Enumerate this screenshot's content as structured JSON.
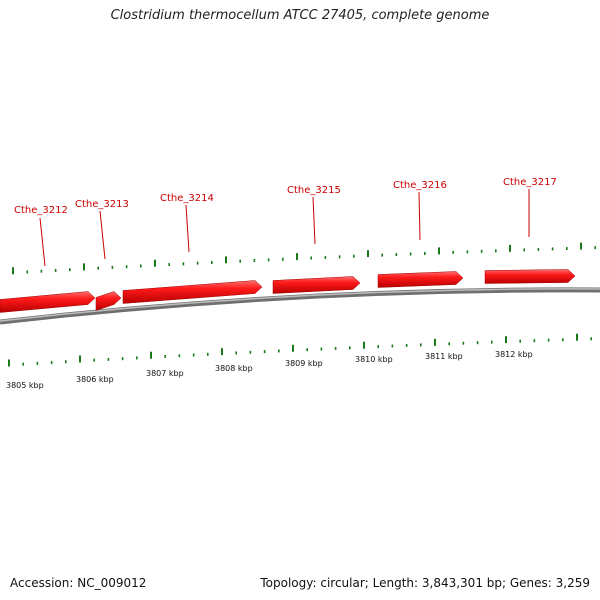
{
  "title": "Clostridium thermocellum ATCC 27405, complete genome",
  "footer": {
    "accession": "Accession: NC_009012",
    "summary": "Topology: circular; Length: 3,843,301 bp; Genes: 3,259"
  },
  "colors": {
    "gene_fill": "#ff1010",
    "gene_label": "#cc0000",
    "tick": "#1a7a1a",
    "backbone": "#7a7a7a"
  },
  "genes": [
    {
      "label": "Cthe_3212"
    },
    {
      "label": "Cthe_3213"
    },
    {
      "label": "Cthe_3214"
    },
    {
      "label": "Cthe_3215"
    },
    {
      "label": "Cthe_3216"
    },
    {
      "label": "Cthe_3217"
    }
  ],
  "axis_labels": [
    "3805 kbp",
    "3806 kbp",
    "3807 kbp",
    "3808 kbp",
    "3809 kbp",
    "3810 kbp",
    "3811 kbp",
    "3812 kbp"
  ]
}
